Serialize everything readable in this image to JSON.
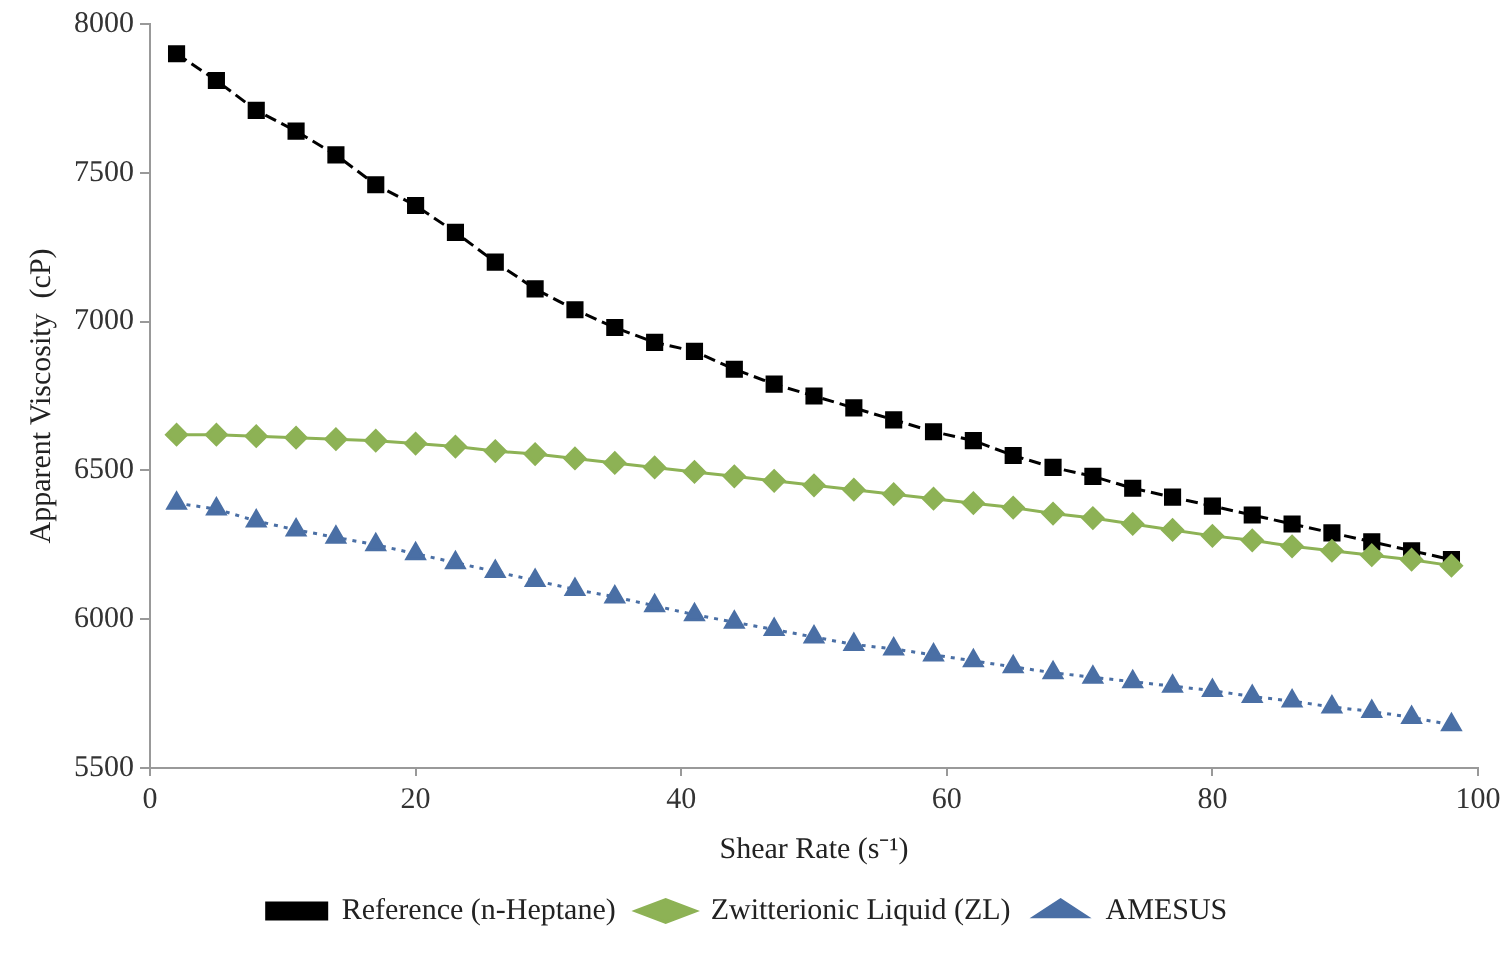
{
  "chart_data": {
    "type": "line",
    "xlabel": "Shear Rate (s⁻¹)",
    "ylabel": "Apparent Viscosity  (cP)",
    "x": [
      2,
      5,
      8,
      11,
      14,
      17,
      20,
      23,
      26,
      29,
      32,
      35,
      38,
      41,
      44,
      47,
      50,
      53,
      56,
      59,
      62,
      65,
      68,
      71,
      74,
      77,
      80,
      83,
      86,
      89,
      92,
      95,
      98
    ],
    "xlim": [
      0,
      100
    ],
    "xticks": [
      0,
      20,
      40,
      60,
      80,
      100
    ],
    "ylim": [
      5500,
      8000
    ],
    "yticks": [
      5500,
      6000,
      6500,
      7000,
      7500,
      8000
    ],
    "grid": false,
    "legend": "bottom",
    "series": [
      {
        "name": "Reference (n-Heptane)",
        "color": "#000000",
        "marker": "square",
        "line_style": "dashed",
        "values": [
          7900,
          7810,
          7710,
          7640,
          7560,
          7460,
          7390,
          7300,
          7200,
          7110,
          7040,
          6980,
          6930,
          6900,
          6840,
          6790,
          6750,
          6710,
          6670,
          6630,
          6600,
          6550,
          6510,
          6480,
          6440,
          6410,
          6380,
          6350,
          6320,
          6290,
          6260,
          6230,
          6200
        ]
      },
      {
        "name": "Zwitterionic Liquid (ZL)",
        "color": "#8db255",
        "marker": "diamond",
        "line_style": "solid",
        "values": [
          6620,
          6620,
          6615,
          6610,
          6605,
          6600,
          6590,
          6580,
          6565,
          6555,
          6540,
          6525,
          6510,
          6495,
          6480,
          6465,
          6450,
          6435,
          6420,
          6405,
          6390,
          6375,
          6355,
          6340,
          6320,
          6300,
          6280,
          6265,
          6245,
          6230,
          6215,
          6200,
          6180
        ]
      },
      {
        "name": "AMESUS",
        "color": "#4a6fa5",
        "marker": "triangle",
        "line_style": "dotted",
        "values": [
          6390,
          6370,
          6330,
          6300,
          6275,
          6250,
          6220,
          6190,
          6160,
          6130,
          6100,
          6075,
          6045,
          6015,
          5990,
          5965,
          5940,
          5915,
          5900,
          5880,
          5860,
          5840,
          5820,
          5805,
          5790,
          5775,
          5760,
          5740,
          5725,
          5705,
          5690,
          5670,
          5645
        ]
      }
    ]
  }
}
